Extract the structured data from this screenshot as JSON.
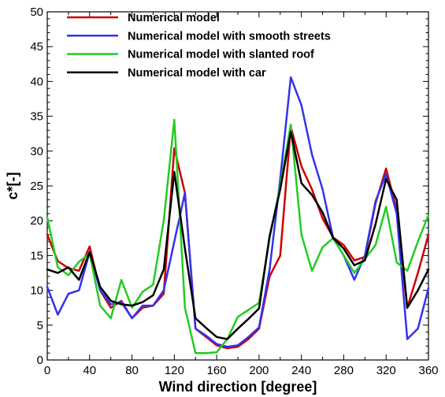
{
  "chart_data": {
    "type": "line",
    "title": "",
    "xlabel": "Wind direction [degree]",
    "ylabel": "c*[-]",
    "xlim": [
      0,
      360
    ],
    "ylim": [
      0,
      50
    ],
    "xticks": [
      0,
      40,
      80,
      120,
      160,
      200,
      240,
      280,
      320,
      360
    ],
    "yticks": [
      0,
      5,
      10,
      15,
      20,
      25,
      30,
      35,
      40,
      45,
      50
    ],
    "grid": false,
    "legend_position": "top-center",
    "series": [
      {
        "name": "Numerical model",
        "color": "#cc0000",
        "points": [
          [
            0,
            18
          ],
          [
            10,
            14.2
          ],
          [
            20,
            13.2
          ],
          [
            30,
            12.8
          ],
          [
            40,
            16.3
          ],
          [
            50,
            10
          ],
          [
            60,
            7.5
          ],
          [
            70,
            8.5
          ],
          [
            80,
            6
          ],
          [
            90,
            7.5
          ],
          [
            100,
            7.8
          ],
          [
            110,
            9.5
          ],
          [
            120,
            30.4
          ],
          [
            130,
            24
          ],
          [
            140,
            4.5
          ],
          [
            150,
            3.3
          ],
          [
            160,
            2.1
          ],
          [
            170,
            1.7
          ],
          [
            180,
            1.9
          ],
          [
            190,
            3
          ],
          [
            200,
            4.5
          ],
          [
            210,
            12
          ],
          [
            220,
            15
          ],
          [
            230,
            33.5
          ],
          [
            240,
            27.8
          ],
          [
            250,
            24.5
          ],
          [
            260,
            20.3
          ],
          [
            270,
            17.6
          ],
          [
            280,
            16.5
          ],
          [
            290,
            14.3
          ],
          [
            300,
            14.8
          ],
          [
            310,
            22.5
          ],
          [
            320,
            27.5
          ],
          [
            330,
            21.5
          ],
          [
            340,
            7.5
          ],
          [
            350,
            12.5
          ],
          [
            360,
            18
          ]
        ]
      },
      {
        "name": "Numerical model with smooth streets",
        "color": "#3333ee",
        "points": [
          [
            0,
            10.5
          ],
          [
            10,
            6.5
          ],
          [
            20,
            9.5
          ],
          [
            30,
            10
          ],
          [
            40,
            15.5
          ],
          [
            50,
            10
          ],
          [
            60,
            8
          ],
          [
            70,
            8.3
          ],
          [
            80,
            6
          ],
          [
            90,
            7.8
          ],
          [
            100,
            7.8
          ],
          [
            110,
            10
          ],
          [
            120,
            17
          ],
          [
            130,
            24
          ],
          [
            140,
            4.5
          ],
          [
            150,
            3.5
          ],
          [
            160,
            2.3
          ],
          [
            170,
            1.9
          ],
          [
            180,
            2.1
          ],
          [
            190,
            3.3
          ],
          [
            200,
            4.7
          ],
          [
            210,
            13
          ],
          [
            220,
            26
          ],
          [
            230,
            40.6
          ],
          [
            240,
            36.6
          ],
          [
            250,
            29.5
          ],
          [
            260,
            24.5
          ],
          [
            270,
            17.5
          ],
          [
            280,
            15
          ],
          [
            290,
            11.5
          ],
          [
            300,
            15
          ],
          [
            310,
            22.8
          ],
          [
            320,
            26.7
          ],
          [
            330,
            21
          ],
          [
            340,
            3
          ],
          [
            350,
            4.5
          ],
          [
            360,
            10.3
          ]
        ]
      },
      {
        "name": "Numerical model with slanted roof",
        "color": "#22cc22",
        "points": [
          [
            0,
            20.5
          ],
          [
            10,
            13.3
          ],
          [
            20,
            12.2
          ],
          [
            30,
            14.1
          ],
          [
            40,
            15.3
          ],
          [
            50,
            7.8
          ],
          [
            60,
            6
          ],
          [
            70,
            11.5
          ],
          [
            80,
            7.5
          ],
          [
            90,
            9.8
          ],
          [
            100,
            10.8
          ],
          [
            110,
            20
          ],
          [
            120,
            34.5
          ],
          [
            130,
            7.5
          ],
          [
            140,
            1
          ],
          [
            150,
            1
          ],
          [
            160,
            1.1
          ],
          [
            170,
            3
          ],
          [
            180,
            6.2
          ],
          [
            190,
            7.2
          ],
          [
            200,
            8.2
          ],
          [
            210,
            17.5
          ],
          [
            220,
            25
          ],
          [
            230,
            33.8
          ],
          [
            240,
            18
          ],
          [
            250,
            12.8
          ],
          [
            260,
            16.2
          ],
          [
            270,
            17.5
          ],
          [
            280,
            15
          ],
          [
            290,
            12.5
          ],
          [
            300,
            14.5
          ],
          [
            310,
            16.5
          ],
          [
            320,
            22
          ],
          [
            330,
            14
          ],
          [
            340,
            12.8
          ],
          [
            350,
            17
          ],
          [
            360,
            20.8
          ]
        ]
      },
      {
        "name": "Numerical model with car",
        "color": "#000000",
        "points": [
          [
            0,
            13
          ],
          [
            10,
            12.5
          ],
          [
            20,
            13.3
          ],
          [
            30,
            11.5
          ],
          [
            40,
            15.5
          ],
          [
            50,
            10.5
          ],
          [
            60,
            8.5
          ],
          [
            70,
            8
          ],
          [
            80,
            7.8
          ],
          [
            90,
            8.3
          ],
          [
            100,
            9.3
          ],
          [
            110,
            13
          ],
          [
            120,
            27
          ],
          [
            130,
            16
          ],
          [
            140,
            6
          ],
          [
            150,
            4.6
          ],
          [
            160,
            3.3
          ],
          [
            170,
            3
          ],
          [
            180,
            4.5
          ],
          [
            190,
            5.9
          ],
          [
            200,
            7.4
          ],
          [
            210,
            17.8
          ],
          [
            220,
            24.5
          ],
          [
            230,
            32.8
          ],
          [
            240,
            25.4
          ],
          [
            250,
            23.7
          ],
          [
            260,
            21.2
          ],
          [
            270,
            17.5
          ],
          [
            280,
            16
          ],
          [
            290,
            13.6
          ],
          [
            300,
            14.3
          ],
          [
            310,
            19.5
          ],
          [
            320,
            26
          ],
          [
            330,
            23
          ],
          [
            340,
            7.5
          ],
          [
            350,
            10
          ],
          [
            360,
            13
          ]
        ]
      }
    ]
  }
}
